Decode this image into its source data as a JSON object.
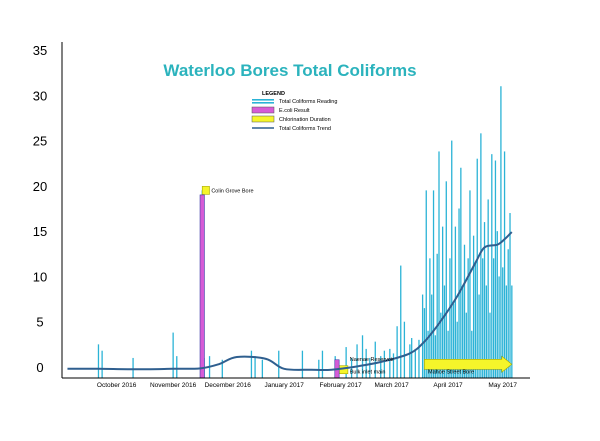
{
  "chart_data": {
    "type": "bar",
    "title": "Waterloo Bores  Total Coliforms",
    "xlabel": "",
    "ylabel": "",
    "ylim": [
      -1,
      35
    ],
    "yticks": [
      0,
      5,
      10,
      15,
      20,
      25,
      30,
      35
    ],
    "xlim": [
      "2016-09-15",
      "2017-05-30"
    ],
    "x_tick_labels": [
      {
        "date": "2016-10-15",
        "label": "October 2016"
      },
      {
        "date": "2016-11-15",
        "label": "November 2016"
      },
      {
        "date": "2016-12-15",
        "label": "December 2016"
      },
      {
        "date": "2017-01-15",
        "label": "January 2017"
      },
      {
        "date": "2017-02-15",
        "label": "February 2017"
      },
      {
        "date": "2017-03-15",
        "label": "March 2017"
      },
      {
        "date": "2017-04-15",
        "label": "April 2017"
      },
      {
        "date": "2017-05-15",
        "label": "May 2017"
      }
    ],
    "legend": {
      "title": "LEGEND",
      "position": "top-center",
      "entries": [
        {
          "label": "Total Coliforms  Reading",
          "kind": "bar",
          "color": "#2bb3d6"
        },
        {
          "label": "E.coli Result",
          "kind": "box",
          "color": "#d65bd6"
        },
        {
          "label": "Chlorination Duration",
          "kind": "box",
          "color": "#f5f52a"
        },
        {
          "label": "Total Coliforms Trend",
          "kind": "line",
          "color": "#2f5f8f"
        }
      ]
    },
    "series": [
      {
        "name": "Total Coliforms  Reading",
        "color": "#2bb3d6",
        "x": [
          "2016-10-05",
          "2016-10-07",
          "2016-10-24",
          "2016-11-15",
          "2016-11-17",
          "2016-12-01",
          "2016-12-02",
          "2016-12-05",
          "2016-12-12",
          "2016-12-28",
          "2016-12-30",
          "2017-01-03",
          "2017-01-12",
          "2017-01-25",
          "2017-02-03",
          "2017-02-05",
          "2017-02-12",
          "2017-02-18",
          "2017-02-21",
          "2017-02-24",
          "2017-02-27",
          "2017-03-01",
          "2017-03-03",
          "2017-03-06",
          "2017-03-09",
          "2017-03-11",
          "2017-03-14",
          "2017-03-16",
          "2017-03-18",
          "2017-03-20",
          "2017-03-22",
          "2017-03-25",
          "2017-03-26",
          "2017-03-28",
          "2017-03-30",
          "2017-04-01",
          "2017-04-02",
          "2017-04-03",
          "2017-04-04",
          "2017-04-05",
          "2017-04-06",
          "2017-04-07",
          "2017-04-08",
          "2017-04-09",
          "2017-04-10",
          "2017-04-11",
          "2017-04-12",
          "2017-04-13",
          "2017-04-14",
          "2017-04-15",
          "2017-04-16",
          "2017-04-17",
          "2017-04-18",
          "2017-04-19",
          "2017-04-20",
          "2017-04-21",
          "2017-04-22",
          "2017-04-23",
          "2017-04-24",
          "2017-04-25",
          "2017-04-26",
          "2017-04-27",
          "2017-04-28",
          "2017-04-29",
          "2017-04-30",
          "2017-05-01",
          "2017-05-02",
          "2017-05-03",
          "2017-05-04",
          "2017-05-05",
          "2017-05-06",
          "2017-05-07",
          "2017-05-08",
          "2017-05-09",
          "2017-05-10",
          "2017-05-11",
          "2017-05-12",
          "2017-05-13",
          "2017-05-14",
          "2017-05-15",
          "2017-05-16",
          "2017-05-17",
          "2017-05-18",
          "2017-05-19",
          "2017-05-20"
        ],
        "values": [
          2.5,
          1.8,
          1,
          3.8,
          1.2,
          19.5,
          1,
          1.2,
          0.8,
          1.8,
          1.2,
          0.8,
          1.8,
          1.8,
          0.8,
          1.8,
          1.2,
          2.2,
          1,
          2.5,
          3.5,
          2,
          1,
          2.8,
          1.2,
          1.8,
          2,
          1.5,
          4.5,
          11.2,
          5,
          2.5,
          3.2,
          2,
          3,
          8,
          6.5,
          19.5,
          4,
          12,
          8,
          19.5,
          3.5,
          12.5,
          23.8,
          6,
          15.5,
          9,
          20.5,
          4,
          12,
          25,
          7,
          15.5,
          5,
          17.5,
          22,
          9,
          13.5,
          6,
          12,
          19.5,
          4,
          14.5,
          11.5,
          23,
          8,
          25.8,
          12,
          16,
          9,
          18.5,
          6,
          23.5,
          12,
          22.8,
          15,
          10,
          31,
          11,
          23.8,
          9,
          13,
          17,
          9
        ]
      },
      {
        "name": "Total Coliforms Trend",
        "color": "#2f5f8f",
        "x": [
          "2016-09-18",
          "2016-10-05",
          "2016-10-25",
          "2016-11-15",
          "2016-11-30",
          "2016-12-10",
          "2016-12-20",
          "2017-01-05",
          "2017-01-15",
          "2017-01-30",
          "2017-02-10",
          "2017-02-25",
          "2017-03-10",
          "2017-03-25",
          "2017-04-02",
          "2017-04-10",
          "2017-04-20",
          "2017-04-30",
          "2017-05-05",
          "2017-05-12",
          "2017-05-16",
          "2017-05-20"
        ],
        "values": [
          -0.2,
          -0.2,
          -0.25,
          -0.2,
          -0.15,
          0.3,
          1.1,
          0.9,
          -0.2,
          -0.3,
          -0.3,
          0.1,
          0.6,
          1.5,
          2.8,
          4.8,
          7.8,
          11.5,
          13.2,
          13.5,
          14.1,
          14.9
        ]
      }
    ],
    "ecoli_results": [
      {
        "date": "2016-12-01",
        "value": 19
      },
      {
        "date": "2017-02-13",
        "value": 0.8
      }
    ],
    "chlorination": [
      {
        "start": "2016-12-01",
        "end": "2016-12-05",
        "level": 19.5
      },
      {
        "start": "2017-02-12",
        "end": "2017-02-19",
        "level": -0.3
      },
      {
        "start": "2017-04-02",
        "end": "2017-05-20",
        "level": 0.3,
        "arrow": true
      }
    ],
    "annotations": [
      {
        "date": "2016-12-06",
        "y": 19.5,
        "text": "Colin Grove Bore"
      },
      {
        "date": "2017-02-20",
        "y": 0.9,
        "text": "Naenae Reservoir"
      },
      {
        "date": "2017-02-20",
        "y": -0.5,
        "text": "Bulk inlet main"
      },
      {
        "date": "2017-04-04",
        "y": -0.5,
        "text": "Mahoe Street Bore"
      }
    ]
  }
}
